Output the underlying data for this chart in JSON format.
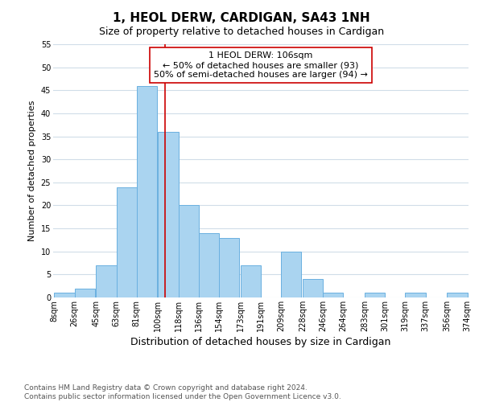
{
  "title": "1, HEOL DERW, CARDIGAN, SA43 1NH",
  "subtitle": "Size of property relative to detached houses in Cardigan",
  "xlabel": "Distribution of detached houses by size in Cardigan",
  "ylabel": "Number of detached properties",
  "bar_left_edges": [
    8,
    26,
    45,
    63,
    81,
    100,
    118,
    136,
    154,
    173,
    191,
    209,
    228,
    246,
    264,
    283,
    301,
    319,
    337,
    356
  ],
  "bar_heights": [
    1,
    2,
    7,
    24,
    46,
    36,
    20,
    14,
    13,
    7,
    0,
    10,
    4,
    1,
    0,
    1,
    0,
    1,
    0,
    1
  ],
  "bin_width": 18,
  "bar_color": "#aad4f0",
  "bar_edgecolor": "#6ab0e0",
  "vline_x": 106,
  "vline_color": "#cc0000",
  "ylim": [
    0,
    55
  ],
  "yticks": [
    0,
    5,
    10,
    15,
    20,
    25,
    30,
    35,
    40,
    45,
    50,
    55
  ],
  "xtick_labels": [
    "8sqm",
    "26sqm",
    "45sqm",
    "63sqm",
    "81sqm",
    "100sqm",
    "118sqm",
    "136sqm",
    "154sqm",
    "173sqm",
    "191sqm",
    "209sqm",
    "228sqm",
    "246sqm",
    "264sqm",
    "283sqm",
    "301sqm",
    "319sqm",
    "337sqm",
    "356sqm",
    "374sqm"
  ],
  "xtick_positions": [
    8,
    26,
    45,
    63,
    81,
    100,
    118,
    136,
    154,
    173,
    191,
    209,
    228,
    246,
    264,
    283,
    301,
    319,
    337,
    356,
    374
  ],
  "annotation_line1": "1 HEOL DERW: 106sqm",
  "annotation_line2": "← 50% of detached houses are smaller (93)",
  "annotation_line3": "50% of semi-detached houses are larger (94) →",
  "footer_line1": "Contains HM Land Registry data © Crown copyright and database right 2024.",
  "footer_line2": "Contains public sector information licensed under the Open Government Licence v3.0.",
  "background_color": "#ffffff",
  "grid_color": "#d0dde8",
  "title_fontsize": 11,
  "subtitle_fontsize": 9,
  "xlabel_fontsize": 9,
  "ylabel_fontsize": 8,
  "tick_fontsize": 7,
  "annotation_fontsize": 8,
  "footer_fontsize": 6.5
}
